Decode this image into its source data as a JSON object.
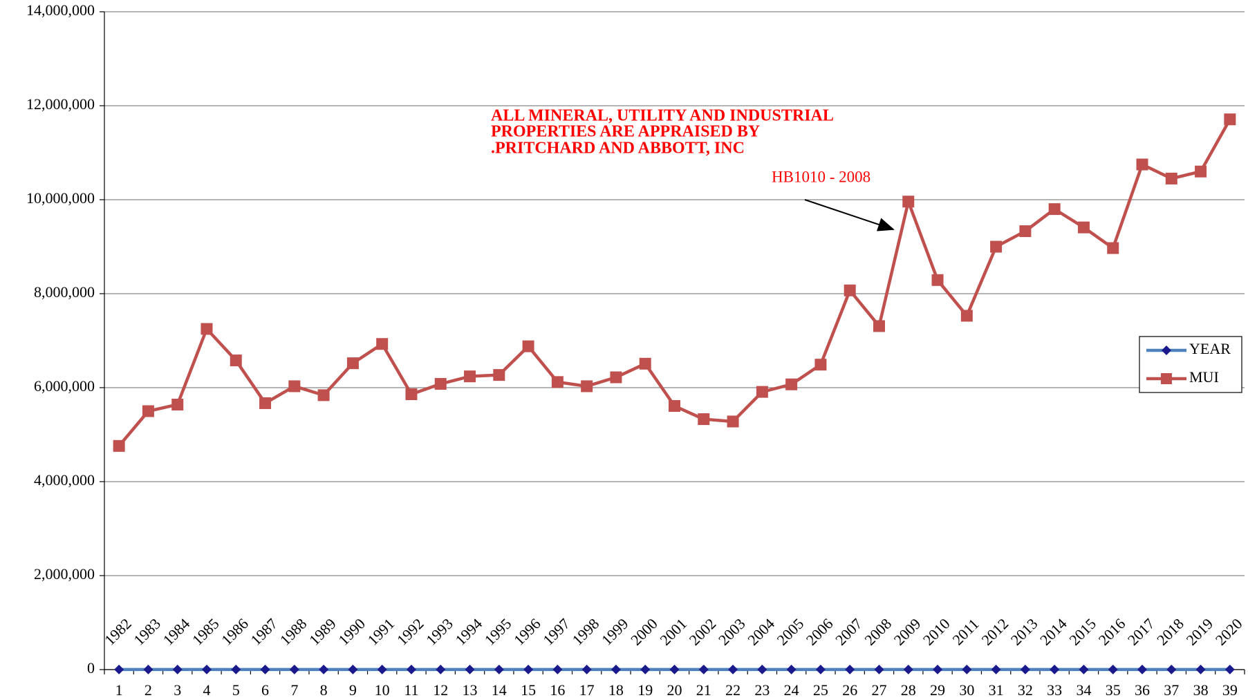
{
  "chart_data": {
    "type": "line",
    "categories": [
      "1",
      "2",
      "3",
      "4",
      "5",
      "6",
      "7",
      "8",
      "9",
      "10",
      "11",
      "12",
      "13",
      "14",
      "15",
      "16",
      "17",
      "18",
      "19",
      "20",
      "21",
      "22",
      "23",
      "24",
      "25",
      "26",
      "27",
      "28",
      "29",
      "30",
      "31",
      "32",
      "33",
      "34",
      "35",
      "36",
      "37",
      "38",
      "39"
    ],
    "series": [
      {
        "name": "YEAR",
        "color": "#4f81bd",
        "marker_color": "#1a1a8c",
        "marker": "diamond",
        "data_labels": true,
        "values": [
          1982,
          1983,
          1984,
          1985,
          1986,
          1987,
          1988,
          1989,
          1990,
          1991,
          1992,
          1993,
          1994,
          1995,
          1996,
          1997,
          1998,
          1999,
          2000,
          2001,
          2002,
          2003,
          2004,
          2005,
          2006,
          2007,
          2008,
          2009,
          2010,
          2011,
          2012,
          2013,
          2014,
          2015,
          2016,
          2017,
          2018,
          2019,
          2020
        ]
      },
      {
        "name": "MUI",
        "color": "#c0504d",
        "marker_color": "#c0504d",
        "marker": "square",
        "data_labels": false,
        "values": [
          4760000,
          5500000,
          5640000,
          7250000,
          6580000,
          5670000,
          6030000,
          5840000,
          6520000,
          6930000,
          5860000,
          6080000,
          6240000,
          6270000,
          6880000,
          6120000,
          6030000,
          6220000,
          6510000,
          5610000,
          5330000,
          5280000,
          5910000,
          6070000,
          6490000,
          8070000,
          7310000,
          9960000,
          8290000,
          7530000,
          9000000,
          9330000,
          9800000,
          9410000,
          8970000,
          10750000,
          10450000,
          10600000,
          11710000
        ]
      }
    ],
    "ylim": [
      0,
      14000000
    ],
    "yticks": [
      0,
      {
        "value": 2000000,
        "label": "2,000,000"
      },
      {
        "value": 4000000,
        "label": "4,000,000"
      },
      {
        "value": 6000000,
        "label": "6,000,000"
      },
      {
        "value": 8000000,
        "label": "8,000,000"
      },
      {
        "value": 10000000,
        "label": "10,000,000"
      },
      {
        "value": 12000000,
        "label": "12,000,000"
      },
      {
        "value": 14000000,
        "label": "14,000,000"
      }
    ],
    "grid": true,
    "legend": "right",
    "annotations": [
      {
        "lines": [
          "ALL MINERAL, UTILITY AND INDUSTRIAL",
          "PROPERTIES ARE APPRAISED BY",
          ".PRITCHARD AND ABBOTT, INC"
        ]
      },
      {
        "text": "HB1010 - 2008"
      }
    ]
  }
}
